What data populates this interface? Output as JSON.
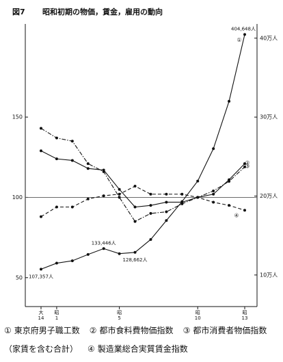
{
  "chart_data": {
    "type": "line",
    "figure_label": "図7",
    "title": "昭和初期の物価，賃金，雇用の動向",
    "categories": [
      "大\n14",
      "昭\n1",
      null,
      null,
      null,
      "昭\n5",
      null,
      null,
      null,
      null,
      "昭\n10",
      null,
      null,
      "昭\n13"
    ],
    "ylim": [
      32,
      208
    ],
    "yticks": [
      50,
      100,
      150
    ],
    "y2lim": [
      60000,
      418000
    ],
    "y2ticks": [
      {
        "value": 100000,
        "label": "10万人"
      },
      {
        "value": 200000,
        "label": "20万人"
      },
      {
        "value": 300000,
        "label": "30万人"
      },
      {
        "value": 400000,
        "label": "40万人"
      }
    ],
    "reference_line": 100,
    "series": [
      {
        "name": "東京府男子職工数",
        "marker": "①",
        "color": "#111",
        "style": "solid",
        "axis": "y2",
        "values": [
          107357,
          115000,
          118000,
          126000,
          133446,
          127000,
          128662,
          145000,
          169000,
          193000,
          219000,
          260000,
          320000,
          404648
        ],
        "value_labels": [
          "107,357人",
          null,
          null,
          null,
          "133,446人",
          null,
          "128,662人",
          null,
          null,
          null,
          null,
          null,
          null,
          "404,648人"
        ]
      },
      {
        "name": "都市食料費物価指数",
        "marker": "②",
        "color": "#111",
        "style": "dashdot",
        "values": [
          143,
          137,
          135,
          121,
          116,
          100,
          85,
          90,
          91,
          96,
          100,
          104,
          110,
          119
        ]
      },
      {
        "name": "都市消費者物価指数（家賃を含む合計）",
        "marker": "③",
        "color": "#111",
        "style": "solid",
        "values": [
          129,
          124,
          123,
          118,
          117,
          105,
          94,
          95,
          97,
          97,
          100,
          102,
          111,
          121
        ]
      },
      {
        "name": "製造業総合実質賃金指数",
        "marker": "④",
        "color": "#111",
        "style": "dashed",
        "values": [
          88,
          94,
          94,
          99,
          101,
          102,
          107,
          102,
          102,
          102,
          100,
          97,
          95,
          92
        ]
      }
    ]
  }
}
